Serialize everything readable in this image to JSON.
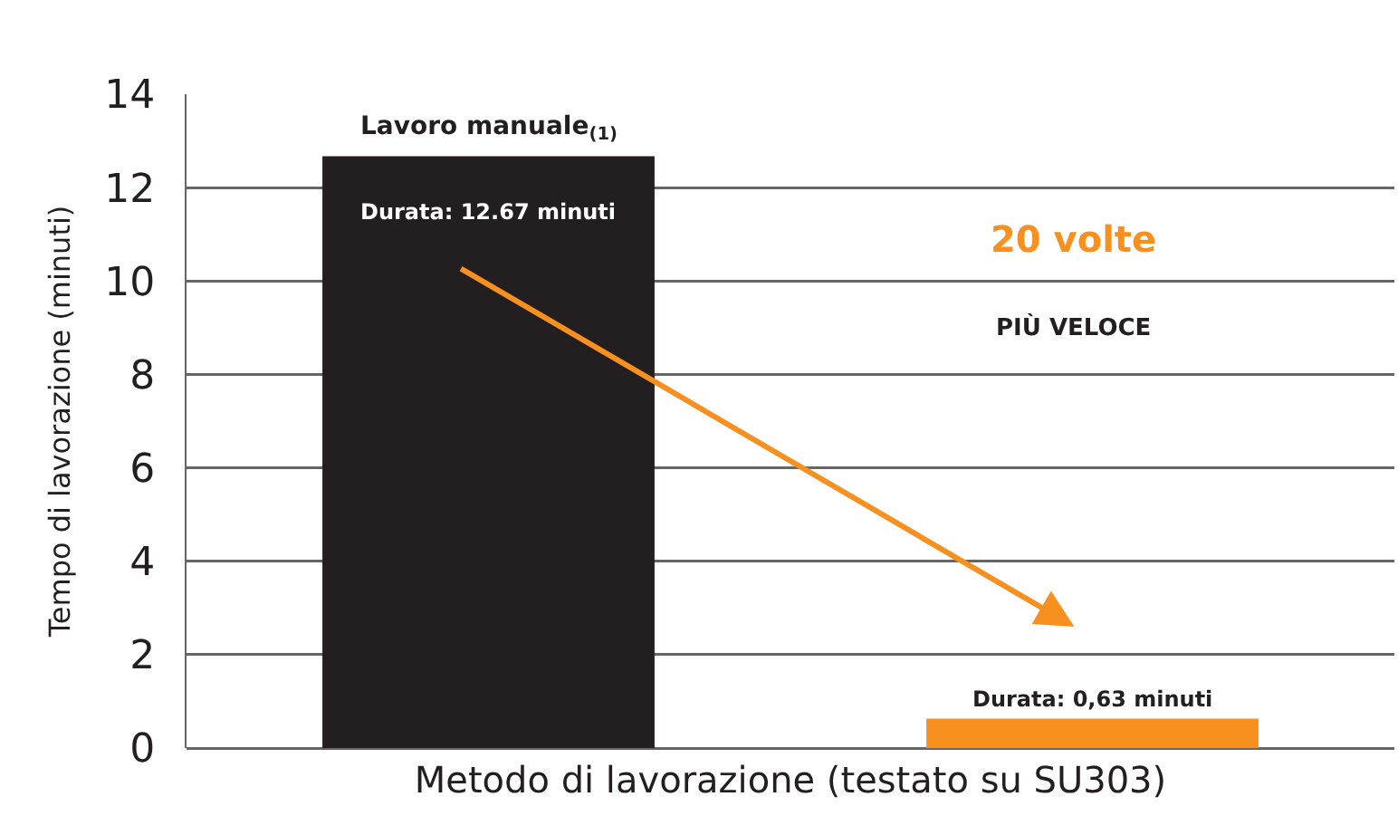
{
  "chart_data": {
    "type": "bar",
    "xlabel": "Metodo di lavorazione (testato su SU303)",
    "ylabel": "Tempo di lavorazione (minuti)",
    "categories": [
      "Lavoro manuale$_{(1)}$",
      null
    ],
    "values": [
      12.67,
      0.63
    ],
    "colors": [
      "#231f20",
      "#f7901e"
    ],
    "value_labels": [
      "Durata: 12.67 minuti",
      "Durata: 0,63 minuti"
    ],
    "annotations": [
      "20 volte",
      "PIÙ VELOCE"
    ],
    "ylim": [
      0,
      14
    ],
    "yticks": [
      0,
      2,
      4,
      6,
      8,
      10,
      12,
      14
    ],
    "grid": "y",
    "legend": false
  }
}
